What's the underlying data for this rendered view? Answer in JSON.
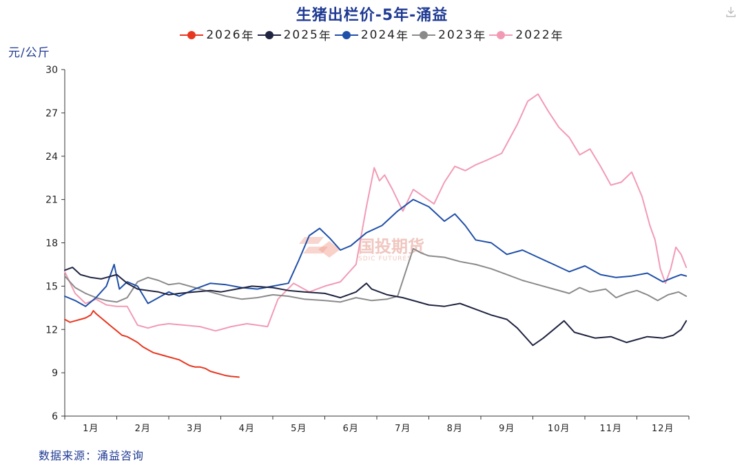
{
  "page": {
    "download_icon": "download-icon"
  },
  "chart_data": {
    "type": "line",
    "title": "生猪出栏价-5年-涌益",
    "ylabel": "元/公斤",
    "xlabel": "",
    "source": "数据来源：涌益咨询",
    "watermark": {
      "name": "国投期货",
      "sub": "SDIC FUTURES"
    },
    "ylim": [
      6,
      30
    ],
    "yticks": [
      6,
      9,
      12,
      15,
      18,
      21,
      24,
      27,
      30
    ],
    "xlim": [
      0,
      12
    ],
    "months": [
      "1月",
      "2月",
      "3月",
      "4月",
      "5月",
      "6月",
      "7月",
      "8月",
      "9月",
      "10月",
      "11月",
      "12月"
    ],
    "legend_suffix": "年",
    "series": [
      {
        "name": "2026",
        "color": "#e8361f",
        "x": [
          0,
          0.1,
          0.2,
          0.3,
          0.4,
          0.5,
          0.55,
          0.6,
          0.7,
          0.8,
          0.9,
          1.0,
          1.1,
          1.2,
          1.3,
          1.4,
          1.5,
          1.6,
          1.7,
          1.8,
          1.9,
          2.0,
          2.1,
          2.2,
          2.3,
          2.4,
          2.5,
          2.6,
          2.7,
          2.8,
          2.9,
          3.0,
          3.1,
          3.2,
          3.35
        ],
        "y": [
          12.7,
          12.5,
          12.6,
          12.7,
          12.8,
          13.0,
          13.3,
          13.1,
          12.8,
          12.5,
          12.2,
          11.9,
          11.6,
          11.5,
          11.3,
          11.1,
          10.8,
          10.6,
          10.4,
          10.3,
          10.2,
          10.1,
          10.0,
          9.9,
          9.7,
          9.5,
          9.4,
          9.4,
          9.3,
          9.1,
          9.0,
          8.9,
          8.8,
          8.75,
          8.7
        ]
      },
      {
        "name": "2025",
        "color": "#1f2440",
        "x": [
          0,
          0.15,
          0.3,
          0.5,
          0.7,
          0.8,
          1.0,
          1.2,
          1.4,
          1.6,
          1.8,
          2.0,
          2.2,
          2.5,
          2.8,
          3.0,
          3.3,
          3.6,
          4.0,
          4.3,
          4.6,
          5.0,
          5.3,
          5.6,
          5.8,
          5.9,
          6.2,
          6.5,
          6.8,
          7.0,
          7.3,
          7.6,
          7.9,
          8.2,
          8.5,
          8.7,
          9.0,
          9.2,
          9.4,
          9.6,
          9.8,
          10.0,
          10.2,
          10.5,
          10.8,
          11.0,
          11.2,
          11.5,
          11.7,
          11.85,
          11.95
        ],
        "y": [
          16.1,
          16.3,
          15.8,
          15.6,
          15.5,
          15.6,
          15.8,
          15.2,
          14.8,
          14.7,
          14.6,
          14.4,
          14.5,
          14.6,
          14.7,
          14.6,
          14.8,
          15.0,
          14.9,
          14.7,
          14.6,
          14.5,
          14.2,
          14.6,
          15.2,
          14.8,
          14.4,
          14.2,
          13.9,
          13.7,
          13.6,
          13.8,
          13.4,
          13.0,
          12.7,
          12.1,
          10.9,
          11.4,
          12.0,
          12.6,
          11.8,
          11.6,
          11.4,
          11.5,
          11.1,
          11.3,
          11.5,
          11.4,
          11.6,
          12.0,
          12.6
        ]
      },
      {
        "name": "2024",
        "color": "#1f4fa8",
        "x": [
          0,
          0.2,
          0.4,
          0.6,
          0.8,
          0.95,
          1.05,
          1.2,
          1.4,
          1.6,
          1.8,
          2.0,
          2.2,
          2.5,
          2.8,
          3.1,
          3.4,
          3.7,
          4.0,
          4.3,
          4.5,
          4.7,
          4.9,
          5.1,
          5.3,
          5.5,
          5.8,
          6.1,
          6.4,
          6.7,
          7.0,
          7.3,
          7.5,
          7.7,
          7.9,
          8.2,
          8.5,
          8.8,
          9.1,
          9.4,
          9.7,
          10.0,
          10.3,
          10.6,
          10.9,
          11.2,
          11.5,
          11.7,
          11.85,
          11.95
        ],
        "y": [
          14.3,
          14.0,
          13.6,
          14.2,
          15.0,
          16.5,
          14.8,
          15.3,
          15.0,
          13.8,
          14.2,
          14.6,
          14.3,
          14.8,
          15.2,
          15.1,
          14.9,
          14.8,
          15.0,
          15.2,
          16.8,
          18.5,
          19.0,
          18.3,
          17.5,
          17.8,
          18.7,
          19.2,
          20.2,
          21.0,
          20.5,
          19.5,
          20.0,
          19.2,
          18.2,
          18.0,
          17.2,
          17.5,
          17.0,
          16.5,
          16.0,
          16.4,
          15.8,
          15.6,
          15.7,
          15.9,
          15.3,
          15.6,
          15.8,
          15.7
        ]
      },
      {
        "name": "2023",
        "color": "#8a8a8a",
        "x": [
          0,
          0.2,
          0.4,
          0.6,
          0.8,
          1.0,
          1.2,
          1.4,
          1.6,
          1.8,
          2.0,
          2.2,
          2.5,
          2.8,
          3.1,
          3.4,
          3.7,
          4.0,
          4.3,
          4.6,
          5.0,
          5.3,
          5.6,
          5.9,
          6.2,
          6.4,
          6.6,
          6.7,
          6.85,
          7.0,
          7.3,
          7.6,
          7.9,
          8.2,
          8.5,
          8.8,
          9.1,
          9.4,
          9.7,
          9.9,
          10.1,
          10.4,
          10.6,
          10.8,
          11.0,
          11.2,
          11.4,
          11.6,
          11.8,
          11.95
        ],
        "y": [
          15.7,
          14.9,
          14.5,
          14.2,
          14.0,
          13.9,
          14.2,
          15.3,
          15.6,
          15.4,
          15.1,
          15.2,
          14.9,
          14.6,
          14.3,
          14.1,
          14.2,
          14.4,
          14.3,
          14.1,
          14.0,
          13.9,
          14.2,
          14.0,
          14.1,
          14.3,
          16.5,
          17.6,
          17.3,
          17.1,
          17.0,
          16.7,
          16.5,
          16.2,
          15.8,
          15.4,
          15.1,
          14.8,
          14.5,
          14.9,
          14.6,
          14.8,
          14.2,
          14.5,
          14.7,
          14.4,
          14.0,
          14.4,
          14.6,
          14.3
        ]
      },
      {
        "name": "2022",
        "color": "#f29ab4",
        "x": [
          0,
          0.2,
          0.4,
          0.6,
          0.8,
          1.0,
          1.2,
          1.4,
          1.6,
          1.8,
          2.0,
          2.3,
          2.6,
          2.9,
          3.2,
          3.5,
          3.7,
          3.9,
          4.1,
          4.4,
          4.7,
          5.0,
          5.3,
          5.6,
          5.8,
          5.95,
          6.05,
          6.15,
          6.3,
          6.5,
          6.7,
          6.9,
          7.1,
          7.3,
          7.5,
          7.7,
          7.9,
          8.1,
          8.4,
          8.7,
          8.9,
          9.1,
          9.3,
          9.5,
          9.7,
          9.9,
          10.1,
          10.3,
          10.5,
          10.7,
          10.9,
          11.1,
          11.25,
          11.35,
          11.45,
          11.55,
          11.65,
          11.75,
          11.85,
          11.95
        ],
        "y": [
          16.0,
          14.5,
          13.8,
          14.1,
          13.7,
          13.6,
          13.6,
          12.3,
          12.1,
          12.3,
          12.4,
          12.3,
          12.2,
          11.9,
          12.2,
          12.4,
          12.3,
          12.2,
          14.1,
          15.2,
          14.6,
          15.0,
          15.3,
          16.5,
          20.5,
          23.2,
          22.3,
          22.7,
          21.7,
          20.2,
          21.7,
          21.2,
          20.7,
          22.2,
          23.3,
          23.0,
          23.4,
          23.7,
          24.2,
          26.2,
          27.8,
          28.3,
          27.1,
          26.0,
          25.3,
          24.1,
          24.5,
          23.3,
          22.0,
          22.2,
          22.9,
          21.2,
          19.2,
          18.2,
          16.2,
          15.2,
          16.2,
          17.7,
          17.2,
          16.3
        ]
      }
    ]
  }
}
